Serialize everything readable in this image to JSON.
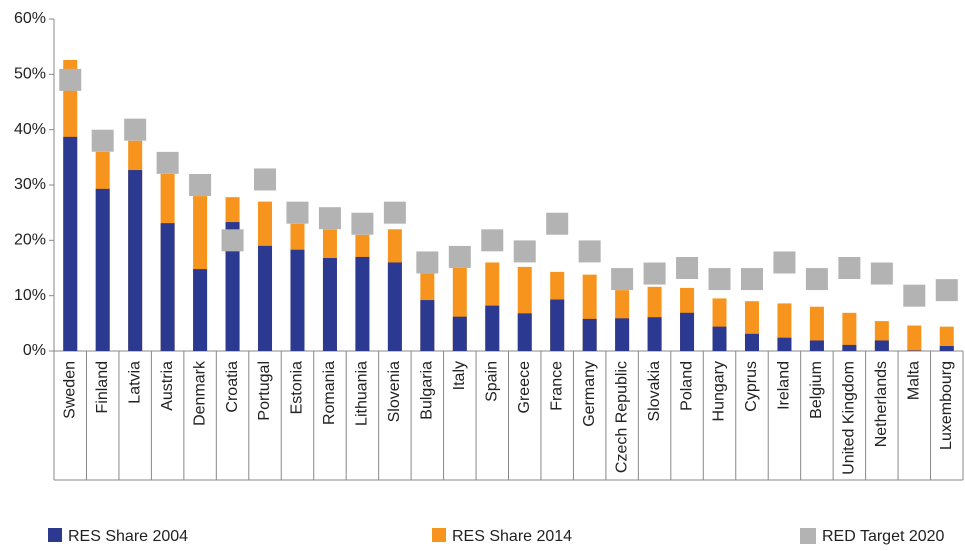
{
  "chart_data": {
    "type": "bar",
    "categories": [
      "Sweden",
      "Finland",
      "Latvia",
      "Austria",
      "Denmark",
      "Croatia",
      "Portugal",
      "Estonia",
      "Romania",
      "Lithuania",
      "Slovenia",
      "Bulgaria",
      "Italy",
      "Spain",
      "Greece",
      "France",
      "Germany",
      "Czech Republic",
      "Slovakia",
      "Poland",
      "Hungary",
      "Cyprus",
      "Ireland",
      "Belgium",
      "United Kingdom",
      "Netherlands",
      "Malta",
      "Luxembourg"
    ],
    "series": [
      {
        "name": "RES Share 2004",
        "color": "#2b3990",
        "values": [
          38.7,
          29.3,
          32.7,
          23.1,
          14.8,
          23.3,
          19,
          18.3,
          16.8,
          17,
          16,
          9.2,
          6.2,
          8.2,
          6.8,
          9.3,
          5.8,
          5.9,
          6.1,
          6.9,
          4.4,
          3.1,
          2.4,
          1.9,
          1.1,
          1.9,
          0.1,
          0.9
        ]
      },
      {
        "name": "RES Share 2014",
        "color": "#f7941d",
        "values": [
          52.6,
          36,
          38,
          32,
          28,
          27.8,
          27,
          23,
          22,
          21,
          22,
          14,
          15,
          16,
          15.2,
          14.3,
          13.8,
          11,
          11.6,
          11.4,
          9.5,
          9,
          8.6,
          8,
          6.9,
          5.4,
          4.6,
          4.4
        ]
      },
      {
        "name": "RED Target 2020",
        "color": "#b3b3b3",
        "values": [
          49,
          38,
          40,
          34,
          30,
          20,
          31,
          25,
          24,
          23,
          25,
          16,
          17,
          20,
          18,
          23,
          18,
          13,
          14,
          15,
          13,
          13,
          16,
          13,
          15,
          14,
          10,
          11
        ]
      }
    ],
    "ylim": [
      0,
      60
    ],
    "yticks": [
      {
        "value": 0,
        "label": "0%"
      },
      {
        "value": 10,
        "label": "10%"
      },
      {
        "value": 20,
        "label": "20%"
      },
      {
        "value": 30,
        "label": "30%"
      },
      {
        "value": 40,
        "label": "40%"
      },
      {
        "value": 50,
        "label": "50%"
      },
      {
        "value": 60,
        "label": "60%"
      }
    ]
  }
}
